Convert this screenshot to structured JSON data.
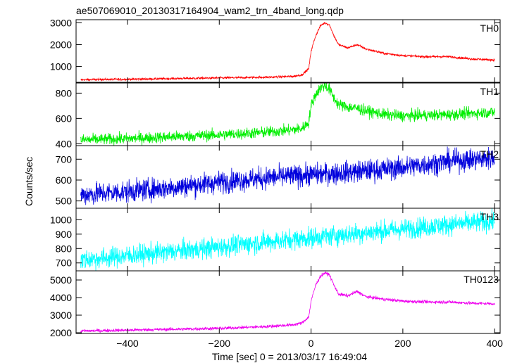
{
  "title": "ae507069010_20130317164904_wam2_trn_4band_long.qdp",
  "ylabel": "Counts/sec",
  "xlabel": "Time [sec] 0 = 2013/03/17 16:49:04",
  "chart_data": {
    "type": "line",
    "title": "ae507069010_20130317164904_wam2_trn_4band_long.qdp",
    "xlabel": "Time [sec] 0 = 2013/03/17 16:49:04",
    "ylabel": "Counts/sec",
    "xlim": [
      -512,
      412
    ],
    "xticks": [
      -400,
      -200,
      0,
      200,
      400
    ],
    "xtick_labels": [
      "−400",
      "−200",
      "0",
      "200",
      "400"
    ],
    "grid": false,
    "legend": "none",
    "panels": [
      {
        "name": "TH0",
        "color": "#ff0000",
        "ylim": [
          280,
          3140
        ],
        "yticks": [
          1000,
          2000,
          3000
        ],
        "ytick_labels": [
          "1000",
          "2000",
          "3000"
        ],
        "noise": 25,
        "x": [
          -500,
          -400,
          -300,
          -200,
          -100,
          -40,
          -20,
          -5,
          0,
          10,
          20,
          30,
          40,
          50,
          60,
          80,
          100,
          120,
          160,
          200,
          250,
          300,
          350,
          400
        ],
        "values": [
          400,
          420,
          450,
          480,
          510,
          550,
          620,
          900,
          1700,
          2400,
          2850,
          3000,
          2900,
          2400,
          2000,
          1850,
          2000,
          1800,
          1600,
          1500,
          1450,
          1450,
          1350,
          1300
        ]
      },
      {
        "name": "TH1",
        "color": "#00ee00",
        "ylim": [
          385,
          880
        ],
        "yticks": [
          400,
          600,
          800
        ],
        "ytick_labels": [
          "400",
          "600",
          "800"
        ],
        "noise": 22,
        "x": [
          -500,
          -400,
          -300,
          -200,
          -100,
          -40,
          -20,
          -5,
          0,
          10,
          20,
          30,
          40,
          50,
          60,
          80,
          100,
          120,
          160,
          200,
          250,
          300,
          350,
          400
        ],
        "values": [
          430,
          440,
          455,
          470,
          490,
          510,
          520,
          570,
          700,
          790,
          840,
          860,
          830,
          760,
          710,
          690,
          680,
          660,
          630,
          620,
          625,
          630,
          640,
          650
        ]
      },
      {
        "name": "TH2",
        "color": "#0000dd",
        "ylim": [
          465,
          765
        ],
        "yticks": [
          500,
          600,
          700
        ],
        "ytick_labels": [
          "500",
          "600",
          "700"
        ],
        "noise": 26,
        "x": [
          -500,
          -400,
          -300,
          -200,
          -100,
          0,
          100,
          200,
          300,
          400
        ],
        "values": [
          530,
          545,
          565,
          590,
          610,
          625,
          640,
          660,
          690,
          705
        ]
      },
      {
        "name": "TH3",
        "color": "#00ffff",
        "ylim": [
          645,
          1080
        ],
        "yticks": [
          700,
          800,
          900,
          1000
        ],
        "ytick_labels": [
          "700",
          "800",
          "900",
          "1000"
        ],
        "noise": 35,
        "x": [
          -500,
          -400,
          -300,
          -200,
          -100,
          0,
          100,
          200,
          300,
          400
        ],
        "values": [
          720,
          750,
          780,
          810,
          845,
          875,
          905,
          935,
          965,
          990
        ]
      },
      {
        "name": "TH0123",
        "color": "#ee00ee",
        "ylim": [
          1960,
          5520
        ],
        "yticks": [
          2000,
          3000,
          4000,
          5000
        ],
        "ytick_labels": [
          "2000",
          "3000",
          "4000",
          "5000"
        ],
        "noise": 45,
        "x": [
          -500,
          -400,
          -300,
          -200,
          -100,
          -40,
          -20,
          -5,
          0,
          10,
          20,
          30,
          40,
          50,
          60,
          80,
          100,
          120,
          160,
          200,
          250,
          300,
          350,
          400
        ],
        "values": [
          2100,
          2150,
          2200,
          2250,
          2350,
          2450,
          2550,
          2900,
          3800,
          4700,
          5200,
          5400,
          5300,
          4700,
          4200,
          4100,
          4350,
          4050,
          3900,
          3800,
          3750,
          3750,
          3680,
          3650
        ]
      }
    ]
  }
}
